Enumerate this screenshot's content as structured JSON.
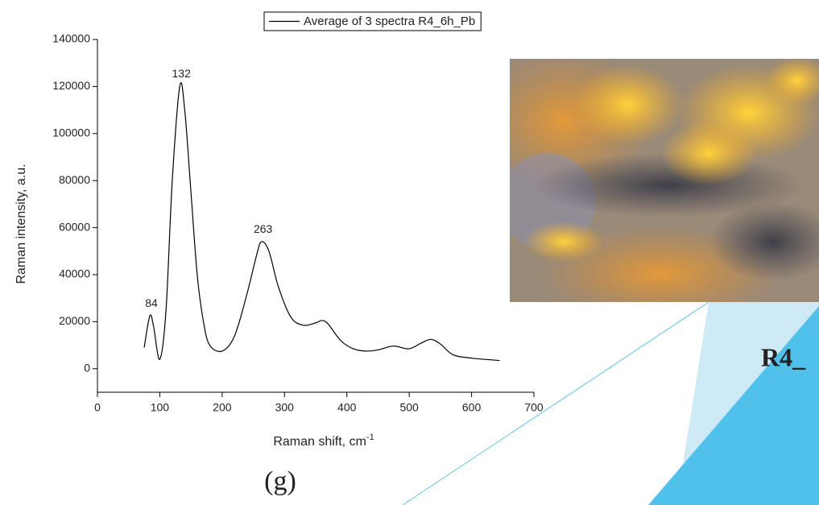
{
  "chart_data": {
    "type": "line",
    "x": [
      75,
      84,
      90,
      100,
      110,
      120,
      132,
      140,
      150,
      160,
      170,
      180,
      200,
      220,
      240,
      255,
      263,
      275,
      290,
      310,
      330,
      350,
      360,
      370,
      390,
      410,
      430,
      450,
      470,
      480,
      500,
      520,
      535,
      550,
      570,
      600,
      645
    ],
    "series": [
      {
        "name": "Average of 3 spectra R4_6h_Pb",
        "color": "#000000",
        "values": [
          9000,
          22500,
          18000,
          4000,
          25000,
          80000,
          120000,
          110000,
          75000,
          40000,
          20000,
          10000,
          7500,
          14000,
          32000,
          48000,
          54000,
          50000,
          35000,
          22000,
          18500,
          19500,
          20500,
          19000,
          12000,
          8500,
          7500,
          8000,
          9500,
          9500,
          8500,
          11000,
          12500,
          10500,
          6000,
          4500,
          3500
        ]
      }
    ],
    "x_label": "Raman shift, cm",
    "x_label_sup": "-1",
    "y_label": "Raman intensity, a.u.",
    "xlim": [
      0,
      700
    ],
    "xticks": [
      0,
      100,
      200,
      300,
      400,
      500,
      600,
      700
    ],
    "ylim": [
      -10000,
      140000
    ],
    "yticks": [
      0,
      20000,
      40000,
      60000,
      80000,
      100000,
      120000,
      140000
    ],
    "annotations": [
      {
        "text": "84",
        "x": 84,
        "y": 22500
      },
      {
        "text": "132",
        "x": 132,
        "y": 120000
      },
      {
        "text": "263",
        "x": 263,
        "y": 54000
      }
    ],
    "legend": "top"
  },
  "slide": {
    "panel_label": "(g)",
    "sample_label": "R4_"
  }
}
